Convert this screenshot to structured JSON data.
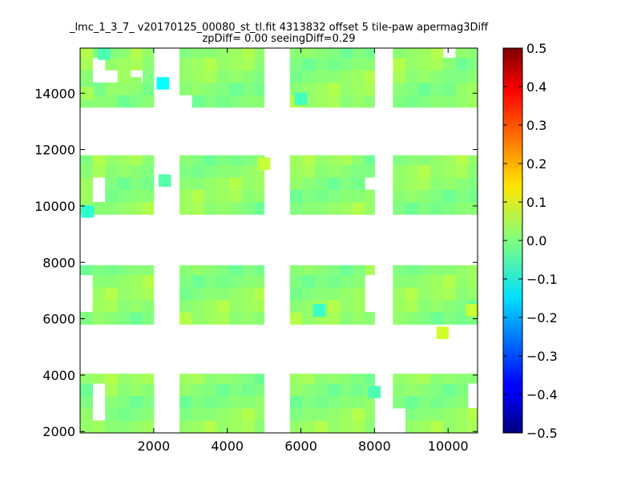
{
  "chart_data": {
    "type": "heatmap",
    "title_line1": "_lmc_1_3_7_ v20170125_00080_st_tl.fit 4313832 offset 5 tile-paw apermag3Diff",
    "title_line2": "zpDiff= 0.00 seeingDiff=0.29",
    "xlabel": "",
    "ylabel": "",
    "xlim": [
      0,
      10800
    ],
    "ylim": [
      1950,
      15600
    ],
    "x_ticks": [
      2000,
      4000,
      6000,
      8000,
      10000
    ],
    "x_tick_labels": [
      "2000",
      "4000",
      "6000",
      "8000",
      "10000"
    ],
    "y_ticks": [
      2000,
      4000,
      6000,
      8000,
      10000,
      12000,
      14000
    ],
    "y_tick_labels": [
      "2000",
      "4000",
      "6000",
      "8000",
      "10000",
      "12000",
      "14000"
    ],
    "colorbar": {
      "min": -0.5,
      "max": 0.5,
      "colormap": "jet",
      "ticks": [
        0.5,
        0.4,
        0.3,
        0.2,
        0.1,
        0.0,
        -0.1,
        -0.2,
        -0.3,
        -0.4,
        -0.5
      ],
      "tick_labels": [
        "0.5",
        "0.4",
        "0.3",
        "0.2",
        "0.1",
        "0.0",
        "−0.1",
        "−0.2",
        "−0.3",
        "−0.4",
        "−0.5"
      ]
    },
    "grid": false,
    "cell_width": 340,
    "cell_height": 440,
    "x_bins": [
      [
        0,
        2000
      ],
      [
        2700,
        5000
      ],
      [
        5700,
        8000
      ],
      [
        8500,
        10800
      ]
    ],
    "y_bins": [
      [
        1950,
        4050
      ],
      [
        5800,
        7900
      ],
      [
        9700,
        11800
      ],
      [
        13500,
        15600
      ]
    ],
    "base_values": [
      0.02,
      0.01,
      0.0,
      0.03,
      0.01,
      -0.02,
      0.04,
      0.02,
      0.0,
      0.01,
      0.03,
      -0.01,
      0.02,
      0.05,
      0.0,
      0.01
    ],
    "special_cells": [
      {
        "x": 2250,
        "y": 14350,
        "value": -0.12
      },
      {
        "x": 1500,
        "y": 14350,
        "value": 0.02
      },
      {
        "x": 200,
        "y": 14000,
        "value": 0.04
      },
      {
        "x": 9850,
        "y": 5500,
        "value": 0.08
      },
      {
        "x": 10650,
        "y": 6300,
        "value": 0.07
      },
      {
        "x": 6500,
        "y": 6300,
        "value": -0.07
      },
      {
        "x": 5000,
        "y": 11500,
        "value": 0.07
      },
      {
        "x": 200,
        "y": 9800,
        "value": -0.08
      },
      {
        "x": 650,
        "y": 15400,
        "value": -0.05
      },
      {
        "x": 6000,
        "y": 13800,
        "value": -0.06
      },
      {
        "x": 2300,
        "y": 10900,
        "value": -0.04
      },
      {
        "x": 8000,
        "y": 3400,
        "value": -0.05
      }
    ],
    "hole_cells": [
      {
        "x": 400,
        "y": 14650
      },
      {
        "x": 400,
        "y": 15100
      },
      {
        "x": 1000,
        "y": 14700
      },
      {
        "x": 1500,
        "y": 14650
      },
      {
        "x": 1700,
        "y": 13800
      },
      {
        "x": 400,
        "y": 11000
      },
      {
        "x": 400,
        "y": 10400
      },
      {
        "x": 300,
        "y": 7300
      },
      {
        "x": 300,
        "y": 6800
      },
      {
        "x": 300,
        "y": 6300
      },
      {
        "x": 400,
        "y": 3500
      },
      {
        "x": 400,
        "y": 3000
      },
      {
        "x": 400,
        "y": 2400
      },
      {
        "x": 3000,
        "y": 13800
      },
      {
        "x": 8000,
        "y": 10900
      },
      {
        "x": 8200,
        "y": 10400
      },
      {
        "x": 10000,
        "y": 15400
      },
      {
        "x": 10600,
        "y": 5800
      },
      {
        "x": 10650,
        "y": 3500
      },
      {
        "x": 10650,
        "y": 3000
      },
      {
        "x": 8700,
        "y": 2600
      },
      {
        "x": 8700,
        "y": 2200
      },
      {
        "x": 7800,
        "y": 7300
      },
      {
        "x": 7800,
        "y": 6800
      },
      {
        "x": 7800,
        "y": 6300
      }
    ]
  }
}
